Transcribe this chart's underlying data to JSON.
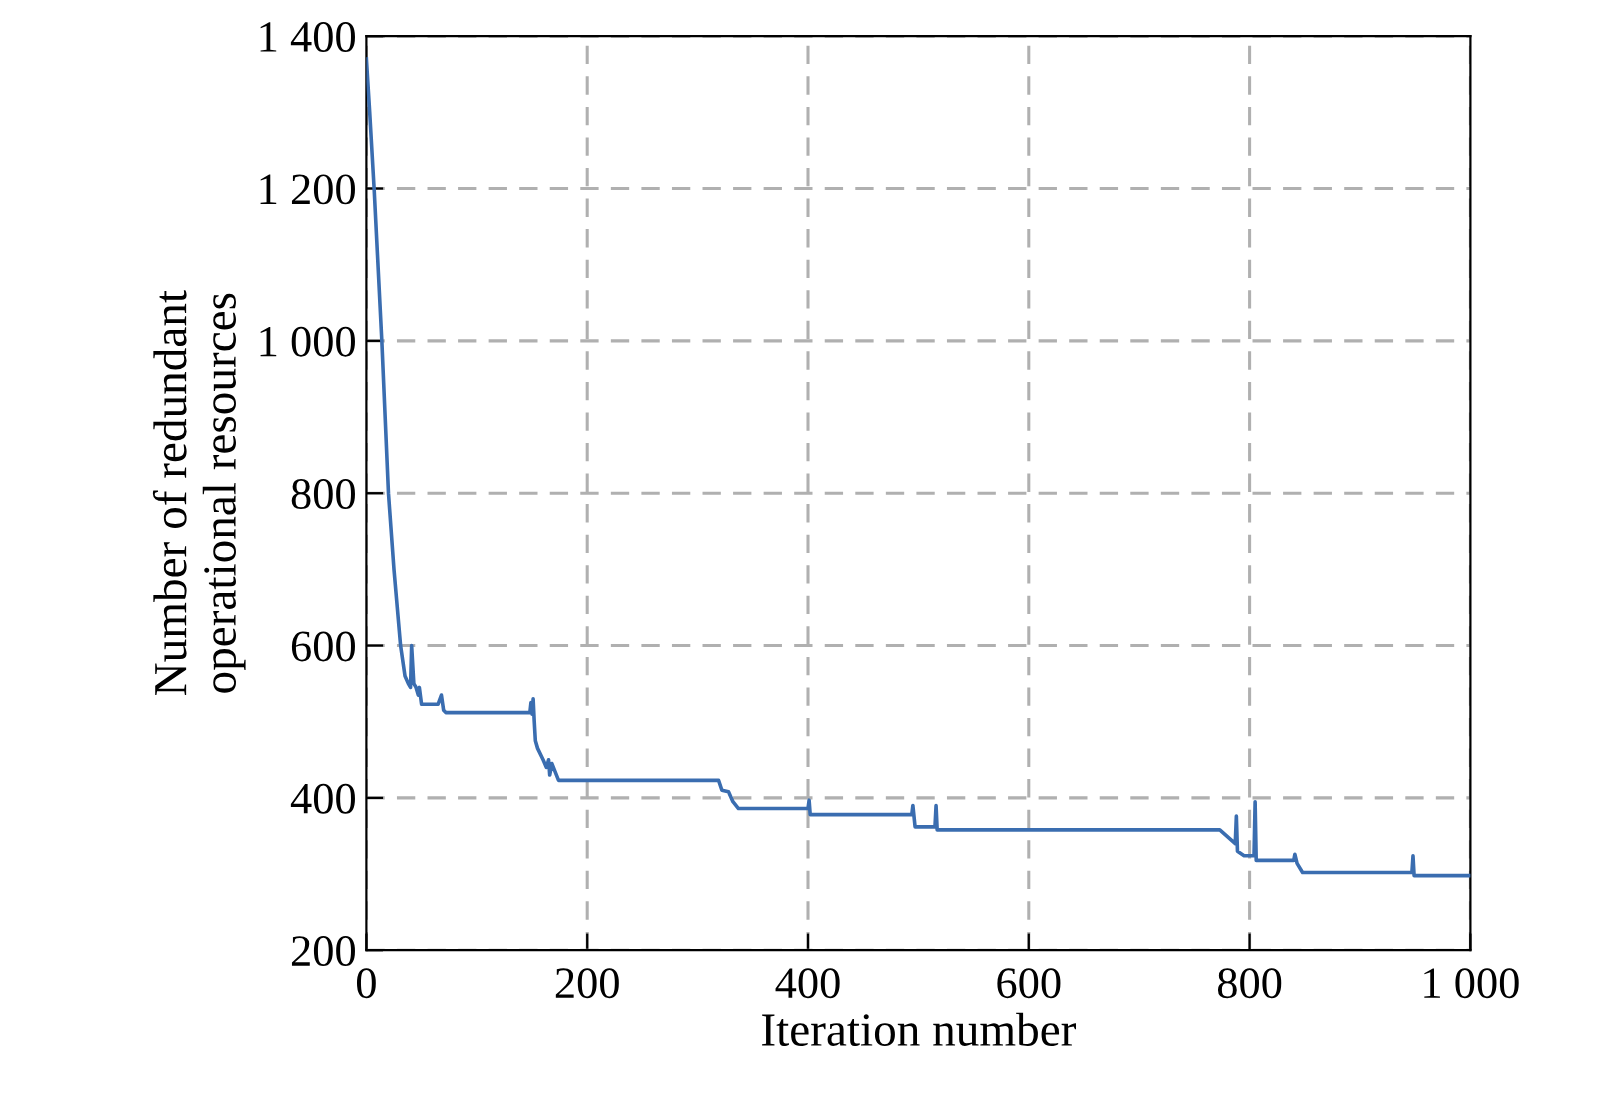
{
  "chart_data": {
    "type": "line",
    "xlabel": "Iteration number",
    "ylabel": "Number of redundant\noperational resources",
    "series": [
      {
        "color": "#3a6db0",
        "x": [
          0,
          3,
          7,
          14,
          20,
          25,
          31,
          35,
          38,
          40,
          41,
          43,
          45,
          47,
          48,
          50,
          55,
          65,
          68,
          70,
          72,
          100,
          148,
          149,
          150,
          151,
          152,
          153,
          155,
          160,
          163,
          165,
          166,
          168,
          174,
          250,
          319,
          322,
          328,
          332,
          337,
          380,
          400,
          401,
          402,
          420,
          480,
          494,
          495,
          497,
          500,
          515,
          516,
          517,
          550,
          700,
          773,
          787,
          788,
          789,
          795,
          804,
          805,
          806,
          830,
          840,
          841,
          843,
          848,
          900,
          947,
          948,
          949,
          960,
          1000
        ],
        "values": [
          1370,
          1300,
          1200,
          1000,
          800,
          700,
          600,
          560,
          550,
          545,
          600,
          550,
          545,
          535,
          545,
          523,
          523,
          523,
          535,
          515,
          512,
          512,
          512,
          525,
          510,
          530,
          500,
          475,
          465,
          450,
          440,
          450,
          430,
          445,
          423,
          423,
          423,
          410,
          408,
          395,
          386,
          386,
          386,
          397,
          378,
          378,
          378,
          378,
          390,
          362,
          362,
          362,
          390,
          358,
          358,
          358,
          358,
          340,
          376,
          330,
          324,
          324,
          395,
          318,
          318,
          318,
          326,
          314,
          302,
          302,
          302,
          324,
          298,
          298,
          298
        ]
      }
    ],
    "xlim": [
      0,
      1000
    ],
    "xticks": [
      0,
      200,
      400,
      600,
      800,
      {
        "value": 1000,
        "label": "1 000"
      }
    ],
    "ylim": [
      200,
      1400
    ],
    "yticks": [
      200,
      400,
      600,
      800,
      {
        "value": 1000,
        "label": "1 000"
      },
      {
        "value": 1200,
        "label": "1 200"
      },
      {
        "value": 1400,
        "label": "1 400"
      }
    ],
    "grid": true,
    "line_style": "solid",
    "marker": "none"
  }
}
